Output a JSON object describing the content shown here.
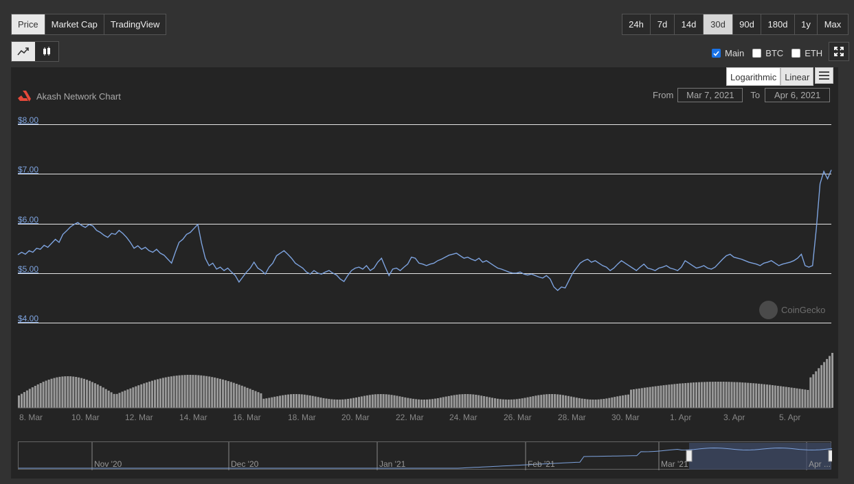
{
  "tabs": [
    {
      "label": "Price",
      "active": true
    },
    {
      "label": "Market Cap",
      "active": false
    },
    {
      "label": "TradingView",
      "active": false
    }
  ],
  "ranges": [
    {
      "label": "24h",
      "active": false
    },
    {
      "label": "7d",
      "active": false
    },
    {
      "label": "14d",
      "active": false
    },
    {
      "label": "30d",
      "active": true
    },
    {
      "label": "90d",
      "active": false
    },
    {
      "label": "180d",
      "active": false
    },
    {
      "label": "1y",
      "active": false
    },
    {
      "label": "Max",
      "active": false
    }
  ],
  "chart_modes": [
    {
      "icon": "line-chart-icon",
      "active": true
    },
    {
      "icon": "candlestick-icon",
      "active": false
    }
  ],
  "series_toggles": [
    {
      "label": "Main",
      "checked": true
    },
    {
      "label": "BTC",
      "checked": false
    },
    {
      "label": "ETH",
      "checked": false
    }
  ],
  "scale": {
    "log_label": "Logarithmic",
    "linear_label": "Linear",
    "active": "Linear"
  },
  "chart_title": "Akash Network Chart",
  "date_range": {
    "from_label": "From",
    "from_value": "Mar 7, 2021",
    "to_label": "To",
    "to_value": "Apr 6, 2021"
  },
  "watermark": "CoinGecko",
  "colors": {
    "line": "#7ea4e0",
    "volume": "#9a9a9a",
    "accent": "#1a73e8",
    "logo": "#e5493a"
  },
  "chart_data": {
    "type": "line",
    "y_ticks": [
      "$8.00",
      "$7.00",
      "$6.00",
      "$5.00",
      "$4.00"
    ],
    "ylim": [
      4,
      8
    ],
    "x_ticks": [
      "8. Mar",
      "10. Mar",
      "12. Mar",
      "14. Mar",
      "16. Mar",
      "18. Mar",
      "20. Mar",
      "22. Mar",
      "24. Mar",
      "26. Mar",
      "28. Mar",
      "30. Mar",
      "1. Apr",
      "3. Apr",
      "5. Apr"
    ],
    "series": [
      {
        "values": [
          5.37,
          5.42,
          5.38,
          5.45,
          5.42,
          5.5,
          5.48,
          5.56,
          5.52,
          5.6,
          5.68,
          5.62,
          5.78,
          5.85,
          5.93,
          5.98,
          6.02,
          5.96,
          5.92,
          5.98,
          5.95,
          5.86,
          5.82,
          5.76,
          5.72,
          5.8,
          5.78,
          5.86,
          5.8,
          5.72,
          5.62,
          5.5,
          5.55,
          5.48,
          5.52,
          5.45,
          5.42,
          5.48,
          5.4,
          5.36,
          5.28,
          5.2,
          5.42,
          5.62,
          5.68,
          5.78,
          5.82,
          5.9,
          5.98,
          5.6,
          5.3,
          5.15,
          5.2,
          5.08,
          5.12,
          5.05,
          5.1,
          5.02,
          4.95,
          4.82,
          4.92,
          5.02,
          5.1,
          5.22,
          5.1,
          5.05,
          4.98,
          5.12,
          5.2,
          5.35,
          5.4,
          5.45,
          5.38,
          5.3,
          5.2,
          5.15,
          5.1,
          5.02,
          4.98,
          5.05,
          5.0,
          4.98,
          5.02,
          5.05,
          5.0,
          4.96,
          4.88,
          4.83,
          4.95,
          5.05,
          5.1,
          5.12,
          5.08,
          5.15,
          5.05,
          5.1,
          5.22,
          5.3,
          5.12,
          4.95,
          5.08,
          5.1,
          5.05,
          5.12,
          5.18,
          5.32,
          5.3,
          5.2,
          5.18,
          5.15,
          5.18,
          5.2,
          5.25,
          5.28,
          5.32,
          5.36,
          5.38,
          5.4,
          5.35,
          5.3,
          5.32,
          5.28,
          5.25,
          5.3,
          5.22,
          5.25,
          5.2,
          5.15,
          5.1,
          5.08,
          5.05,
          5.02,
          5.0,
          5.0,
          5.02,
          4.98,
          4.96,
          4.98,
          4.95,
          4.92,
          4.9,
          4.95,
          4.88,
          4.72,
          4.65,
          4.72,
          4.7,
          4.85,
          5.0,
          5.1,
          5.2,
          5.25,
          5.28,
          5.22,
          5.25,
          5.2,
          5.15,
          5.12,
          5.05,
          5.1,
          5.18,
          5.25,
          5.2,
          5.15,
          5.1,
          5.05,
          5.12,
          5.18,
          5.1,
          5.08,
          5.05,
          5.1,
          5.12,
          5.15,
          5.1,
          5.08,
          5.05,
          5.12,
          5.25,
          5.2,
          5.15,
          5.1,
          5.12,
          5.15,
          5.1,
          5.08,
          5.12,
          5.2,
          5.28,
          5.35,
          5.38,
          5.32,
          5.3,
          5.28,
          5.25,
          5.22,
          5.2,
          5.18,
          5.15,
          5.2,
          5.22,
          5.25,
          5.2,
          5.15,
          5.18,
          5.2,
          5.22,
          5.25,
          5.3,
          5.38,
          5.15,
          5.12,
          5.15,
          5.9,
          6.8,
          7.05,
          6.9,
          7.08
        ]
      }
    ]
  },
  "navigator": {
    "labels": [
      "Nov '20",
      "Dec '20",
      "Jan '21",
      "Feb '21",
      "Mar '21",
      "Apr ..."
    ]
  }
}
